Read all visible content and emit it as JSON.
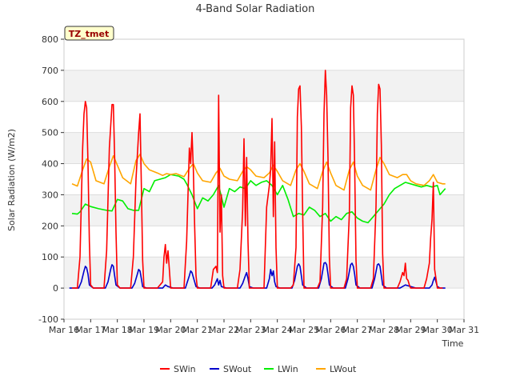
{
  "chart_data": {
    "type": "line",
    "title": "4-Band Solar Radiation",
    "xlabel": "Time",
    "ylabel": "Solar Radiation (W/m2)",
    "site_label": "TZ_tmet",
    "xlim": [
      16,
      31
    ],
    "ylim": [
      -100,
      800
    ],
    "x_ticks": [
      16,
      17,
      18,
      19,
      20,
      21,
      22,
      23,
      24,
      25,
      26,
      27,
      28,
      29,
      30,
      31
    ],
    "x_tick_labels": [
      "Mar 16",
      "Mar 17",
      "Mar 18",
      "Mar 19",
      "Mar 20",
      "Mar 21",
      "Mar 22",
      "Mar 23",
      "Mar 24",
      "Mar 25",
      "Mar 26",
      "Mar 27",
      "Mar 28",
      "Mar 29",
      "Mar 30",
      "Mar 31"
    ],
    "y_ticks": [
      -100,
      0,
      100,
      200,
      300,
      400,
      500,
      600,
      700,
      800
    ],
    "grid": true,
    "legend_position": "bottom",
    "series": [
      {
        "name": "SWin",
        "color": "#ff0000",
        "x": [
          16.3,
          16.5,
          16.6,
          16.7,
          16.75,
          16.8,
          16.85,
          16.9,
          16.95,
          17.0,
          17.1,
          17.2,
          17.5,
          17.6,
          17.7,
          17.8,
          17.85,
          17.9,
          17.95,
          18.0,
          18.1,
          18.2,
          18.5,
          18.6,
          18.7,
          18.8,
          18.85,
          18.9,
          18.95,
          19.0,
          19.1,
          19.2,
          19.5,
          19.7,
          19.75,
          19.8,
          19.85,
          19.9,
          19.95,
          20.0,
          20.1,
          20.2,
          20.5,
          20.6,
          20.7,
          20.75,
          20.8,
          20.85,
          20.9,
          20.95,
          21.0,
          21.1,
          21.2,
          21.5,
          21.6,
          21.7,
          21.75,
          21.8,
          21.85,
          21.9,
          21.95,
          22.0,
          22.1,
          22.2,
          22.5,
          22.6,
          22.7,
          22.75,
          22.8,
          22.85,
          22.9,
          22.95,
          23.0,
          23.1,
          23.2,
          23.5,
          23.6,
          23.7,
          23.75,
          23.8,
          23.85,
          23.9,
          23.95,
          24.0,
          24.1,
          24.2,
          24.5,
          24.6,
          24.7,
          24.75,
          24.8,
          24.85,
          24.9,
          24.95,
          25.0,
          25.1,
          25.2,
          25.5,
          25.6,
          25.7,
          25.75,
          25.8,
          25.85,
          25.9,
          25.95,
          26.0,
          26.1,
          26.2,
          26.5,
          26.6,
          26.7,
          26.75,
          26.8,
          26.85,
          26.9,
          26.95,
          27.0,
          27.1,
          27.2,
          27.5,
          27.6,
          27.7,
          27.75,
          27.8,
          27.85,
          27.9,
          27.95,
          28.0,
          28.1,
          28.2,
          28.5,
          28.6,
          28.7,
          28.75,
          28.8,
          28.85,
          28.9,
          28.95,
          29.0,
          29.1,
          29.2,
          29.5,
          29.6,
          29.7,
          29.75,
          29.8,
          29.85,
          29.9,
          29.95,
          30.0,
          30.1,
          30.2
        ],
        "values": [
          0,
          0,
          100,
          450,
          560,
          600,
          580,
          400,
          150,
          10,
          0,
          0,
          0,
          120,
          450,
          590,
          590,
          420,
          180,
          10,
          0,
          0,
          0,
          100,
          350,
          500,
          560,
          330,
          90,
          0,
          0,
          0,
          0,
          20,
          100,
          140,
          80,
          120,
          60,
          0,
          0,
          0,
          0,
          150,
          450,
          400,
          500,
          380,
          200,
          40,
          0,
          0,
          0,
          0,
          60,
          70,
          50,
          620,
          180,
          300,
          40,
          0,
          0,
          0,
          0,
          60,
          250,
          480,
          200,
          420,
          150,
          0,
          0,
          0,
          0,
          0,
          260,
          330,
          380,
          545,
          230,
          470,
          130,
          0,
          0,
          0,
          0,
          10,
          130,
          550,
          640,
          650,
          520,
          250,
          0,
          0,
          0,
          0,
          20,
          260,
          560,
          700,
          620,
          420,
          100,
          0,
          0,
          0,
          0,
          30,
          240,
          580,
          650,
          620,
          400,
          90,
          0,
          0,
          0,
          0,
          30,
          260,
          560,
          655,
          640,
          460,
          110,
          0,
          0,
          0,
          0,
          20,
          50,
          40,
          80,
          30,
          25,
          10,
          0,
          0,
          0,
          0,
          30,
          80,
          160,
          220,
          340,
          60,
          30,
          0,
          0,
          0
        ]
      },
      {
        "name": "SWout",
        "color": "#0000cc",
        "x": [
          16.2,
          16.55,
          16.65,
          16.75,
          16.8,
          16.85,
          16.9,
          16.95,
          17.1,
          17.55,
          17.65,
          17.75,
          17.8,
          17.85,
          17.9,
          17.95,
          18.1,
          18.55,
          18.65,
          18.75,
          18.8,
          18.85,
          18.9,
          18.95,
          19.1,
          19.7,
          19.8,
          19.9,
          20.1,
          20.55,
          20.7,
          20.75,
          20.8,
          20.9,
          20.95,
          21.1,
          21.55,
          21.65,
          21.75,
          21.8,
          21.85,
          21.9,
          22.1,
          22.6,
          22.7,
          22.8,
          22.85,
          22.9,
          22.95,
          23.1,
          23.6,
          23.7,
          23.75,
          23.8,
          23.85,
          23.9,
          23.95,
          24.1,
          24.55,
          24.65,
          24.75,
          24.8,
          24.85,
          24.9,
          24.95,
          25.1,
          25.55,
          25.65,
          25.75,
          25.8,
          25.85,
          25.9,
          25.95,
          26.1,
          26.55,
          26.65,
          26.75,
          26.8,
          26.85,
          26.9,
          26.95,
          27.1,
          27.55,
          27.65,
          27.75,
          27.8,
          27.85,
          27.9,
          27.95,
          28.1,
          28.6,
          28.8,
          29.0,
          29.2,
          29.7,
          29.8,
          29.85,
          29.9,
          29.95,
          30.0,
          30.1,
          30.3
        ],
        "values": [
          0,
          0,
          20,
          55,
          70,
          65,
          45,
          10,
          0,
          0,
          20,
          60,
          75,
          70,
          40,
          10,
          0,
          0,
          15,
          45,
          60,
          55,
          30,
          5,
          0,
          0,
          10,
          5,
          0,
          0,
          40,
          55,
          50,
          20,
          5,
          0,
          0,
          10,
          30,
          10,
          25,
          5,
          0,
          0,
          15,
          40,
          50,
          30,
          5,
          0,
          0,
          30,
          60,
          40,
          55,
          20,
          5,
          0,
          0,
          25,
          70,
          78,
          70,
          40,
          10,
          0,
          0,
          30,
          80,
          82,
          75,
          45,
          10,
          0,
          0,
          30,
          75,
          80,
          70,
          45,
          10,
          0,
          0,
          30,
          75,
          78,
          70,
          40,
          10,
          0,
          0,
          10,
          5,
          0,
          0,
          10,
          25,
          35,
          20,
          5,
          0,
          0
        ]
      },
      {
        "name": "LWin",
        "color": "#00ee00",
        "x": [
          16.3,
          16.5,
          16.6,
          16.8,
          17.0,
          17.3,
          17.6,
          17.8,
          18.0,
          18.2,
          18.4,
          18.6,
          18.8,
          19.0,
          19.2,
          19.4,
          19.6,
          19.8,
          20.0,
          20.3,
          20.5,
          20.6,
          20.8,
          21.0,
          21.2,
          21.4,
          21.6,
          21.8,
          22.0,
          22.2,
          22.4,
          22.6,
          22.8,
          23.0,
          23.2,
          23.4,
          23.6,
          23.8,
          24.0,
          24.2,
          24.4,
          24.6,
          24.8,
          25.0,
          25.2,
          25.4,
          25.6,
          25.8,
          26.0,
          26.2,
          26.4,
          26.6,
          26.8,
          27.0,
          27.2,
          27.4,
          27.6,
          27.8,
          28.0,
          28.2,
          28.4,
          28.6,
          28.8,
          29.0,
          29.2,
          29.4,
          29.6,
          29.8,
          30.0,
          30.1,
          30.3
        ],
        "values": [
          240,
          238,
          245,
          270,
          262,
          255,
          250,
          248,
          285,
          280,
          255,
          250,
          250,
          320,
          310,
          345,
          350,
          355,
          365,
          360,
          350,
          335,
          300,
          255,
          290,
          280,
          300,
          330,
          260,
          320,
          310,
          325,
          320,
          345,
          330,
          340,
          345,
          330,
          300,
          330,
          285,
          230,
          240,
          235,
          260,
          250,
          230,
          240,
          215,
          230,
          220,
          240,
          245,
          225,
          215,
          210,
          230,
          250,
          270,
          300,
          320,
          330,
          340,
          335,
          330,
          325,
          330,
          325,
          330,
          300,
          320
        ]
      },
      {
        "name": "LWout",
        "color": "#ffa500",
        "x": [
          16.3,
          16.5,
          16.7,
          16.85,
          17.0,
          17.2,
          17.5,
          17.7,
          17.85,
          18.0,
          18.2,
          18.5,
          18.7,
          18.85,
          19.0,
          19.2,
          19.5,
          19.7,
          19.85,
          20.0,
          20.2,
          20.5,
          20.7,
          20.85,
          21.0,
          21.2,
          21.5,
          21.7,
          21.85,
          22.0,
          22.2,
          22.5,
          22.7,
          22.85,
          23.0,
          23.2,
          23.5,
          23.7,
          23.85,
          24.0,
          24.2,
          24.5,
          24.7,
          24.85,
          25.0,
          25.2,
          25.5,
          25.7,
          25.85,
          26.0,
          26.2,
          26.5,
          26.7,
          26.85,
          27.0,
          27.2,
          27.5,
          27.7,
          27.85,
          28.0,
          28.2,
          28.5,
          28.7,
          28.85,
          29.0,
          29.2,
          29.5,
          29.7,
          29.85,
          30.0,
          30.2,
          30.3
        ],
        "values": [
          335,
          328,
          380,
          415,
          405,
          345,
          335,
          390,
          425,
          395,
          355,
          335,
          410,
          430,
          400,
          380,
          370,
          362,
          368,
          365,
          368,
          358,
          385,
          400,
          370,
          345,
          340,
          370,
          385,
          360,
          350,
          345,
          375,
          390,
          380,
          360,
          355,
          370,
          395,
          375,
          345,
          330,
          380,
          400,
          375,
          335,
          320,
          375,
          405,
          370,
          330,
          315,
          380,
          405,
          360,
          330,
          315,
          380,
          420,
          400,
          365,
          355,
          365,
          365,
          345,
          335,
          330,
          345,
          365,
          340,
          335,
          335
        ]
      }
    ]
  }
}
